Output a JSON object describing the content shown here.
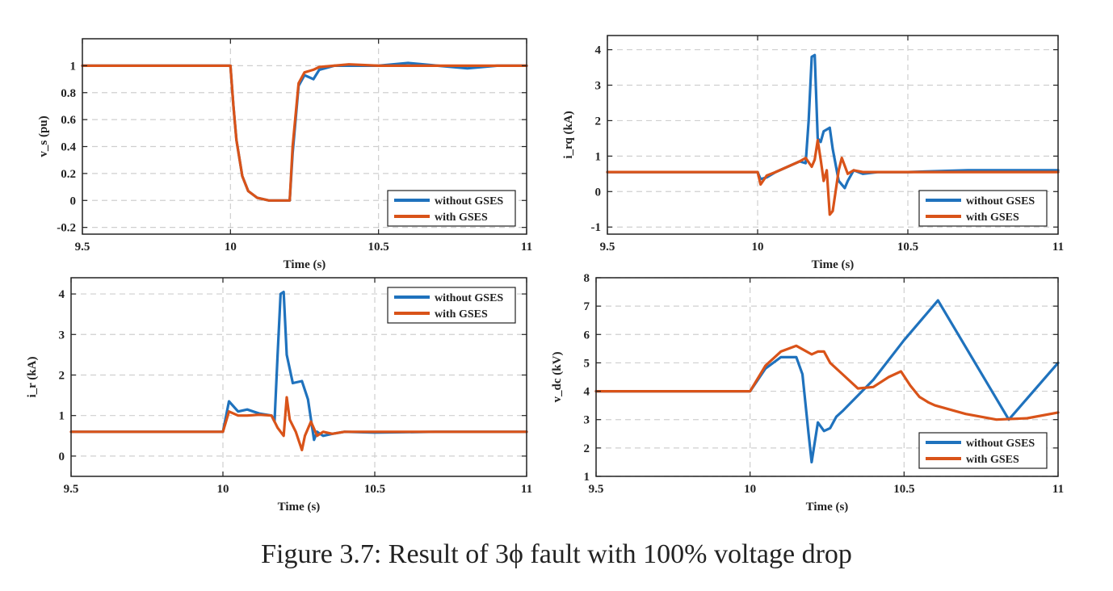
{
  "caption": "Figure 3.7: Result of 3ϕ fault with 100% voltage drop",
  "colors": {
    "without": "#1f72bd",
    "with": "#d95319"
  },
  "chart_data": [
    {
      "type": "line",
      "ylabel": "v_s (pu)",
      "xlabel": "Time (s)",
      "xlim": [
        9.5,
        11
      ],
      "ylim": [
        -0.25,
        1.2
      ],
      "xticks": [
        9.5,
        10,
        10.5,
        11
      ],
      "xtick_labels": [
        "9.5",
        "10",
        "10.5",
        "11"
      ],
      "yticks": [
        -0.2,
        0,
        0.2,
        0.4,
        0.6,
        0.8,
        1
      ],
      "ytick_labels": [
        "-0.2",
        "0",
        "0.2",
        "0.4",
        "0.6",
        "0.8",
        "1"
      ],
      "grid": true,
      "legend_position": "bottom-right",
      "series": [
        {
          "name": "without GSES",
          "color": "#1f72bd",
          "x": [
            9.5,
            10.0,
            10.01,
            10.02,
            10.04,
            10.06,
            10.09,
            10.13,
            10.2,
            10.21,
            10.23,
            10.25,
            10.28,
            10.3,
            10.35,
            10.4,
            10.5,
            10.6,
            10.7,
            10.8,
            10.9,
            11.0
          ],
          "y": [
            1,
            1,
            0.7,
            0.45,
            0.18,
            0.07,
            0.02,
            0.0,
            0.0,
            0.35,
            0.85,
            0.93,
            0.9,
            0.97,
            1.0,
            1.0,
            1.0,
            1.02,
            1.0,
            0.98,
            1.0,
            1.0
          ]
        },
        {
          "name": "with GSES",
          "color": "#d95319",
          "x": [
            9.5,
            10.0,
            10.01,
            10.02,
            10.04,
            10.06,
            10.09,
            10.13,
            10.2,
            10.21,
            10.23,
            10.25,
            10.28,
            10.3,
            10.35,
            10.4,
            10.5,
            10.6,
            10.7,
            10.8,
            10.9,
            11.0
          ],
          "y": [
            1,
            1,
            0.7,
            0.45,
            0.18,
            0.07,
            0.02,
            0.0,
            0.0,
            0.4,
            0.87,
            0.95,
            0.97,
            0.99,
            1.0,
            1.01,
            1.0,
            1.0,
            1.0,
            1.0,
            1.0,
            1.0
          ]
        }
      ]
    },
    {
      "type": "line",
      "ylabel": "i_rq (kA)",
      "xlabel": "Time (s)",
      "xlim": [
        9.5,
        11
      ],
      "ylim": [
        -1.2,
        4.4
      ],
      "xticks": [
        9.5,
        10,
        10.5,
        11
      ],
      "xtick_labels": [
        "9.5",
        "10",
        "10.5",
        "11"
      ],
      "yticks": [
        -1,
        0,
        1,
        2,
        3,
        4
      ],
      "ytick_labels": [
        "-1",
        "0",
        "1",
        "2",
        "3",
        "4"
      ],
      "grid": true,
      "legend_position": "bottom-right",
      "series": [
        {
          "name": "without GSES",
          "color": "#1f72bd",
          "x": [
            9.5,
            10.0,
            10.01,
            10.03,
            10.06,
            10.1,
            10.14,
            10.16,
            10.17,
            10.18,
            10.19,
            10.2,
            10.21,
            10.22,
            10.24,
            10.25,
            10.27,
            10.29,
            10.3,
            10.32,
            10.35,
            10.4,
            10.5,
            10.7,
            11.0
          ],
          "y": [
            0.55,
            0.55,
            0.35,
            0.4,
            0.55,
            0.7,
            0.85,
            0.8,
            2.0,
            3.8,
            3.85,
            1.5,
            1.4,
            1.7,
            1.8,
            1.2,
            0.3,
            0.1,
            0.3,
            0.6,
            0.5,
            0.55,
            0.55,
            0.6,
            0.6
          ]
        },
        {
          "name": "with GSES",
          "color": "#d95319",
          "x": [
            9.5,
            10.0,
            10.01,
            10.03,
            10.06,
            10.1,
            10.14,
            10.16,
            10.18,
            10.19,
            10.2,
            10.21,
            10.22,
            10.23,
            10.24,
            10.25,
            10.27,
            10.28,
            10.3,
            10.32,
            10.35,
            10.4,
            11.0
          ],
          "y": [
            0.55,
            0.55,
            0.2,
            0.45,
            0.55,
            0.7,
            0.85,
            0.95,
            0.7,
            0.9,
            1.45,
            0.9,
            0.3,
            0.6,
            -0.65,
            -0.55,
            0.6,
            0.95,
            0.5,
            0.6,
            0.55,
            0.55,
            0.55
          ]
        }
      ]
    },
    {
      "type": "line",
      "ylabel": "i_r (kA)",
      "xlabel": "Time (s)",
      "xlim": [
        9.5,
        11
      ],
      "ylim": [
        -0.5,
        4.4
      ],
      "xticks": [
        9.5,
        10,
        10.5,
        11
      ],
      "xtick_labels": [
        "9.5",
        "10",
        "10.5",
        "11"
      ],
      "yticks": [
        0,
        1,
        2,
        3,
        4
      ],
      "ytick_labels": [
        "0",
        "1",
        "2",
        "3",
        "4"
      ],
      "grid": true,
      "legend_position": "top-right",
      "series": [
        {
          "name": "without GSES",
          "color": "#1f72bd",
          "x": [
            9.5,
            10.0,
            10.02,
            10.05,
            10.08,
            10.12,
            10.16,
            10.17,
            10.18,
            10.19,
            10.2,
            10.21,
            10.23,
            10.26,
            10.28,
            10.3,
            10.31,
            10.33,
            10.36,
            10.4,
            10.5,
            10.7,
            11.0
          ],
          "y": [
            0.6,
            0.6,
            1.35,
            1.1,
            1.15,
            1.05,
            1.0,
            0.85,
            2.5,
            4.0,
            4.05,
            2.5,
            1.8,
            1.85,
            1.4,
            0.4,
            0.6,
            0.5,
            0.55,
            0.6,
            0.58,
            0.6,
            0.6
          ]
        },
        {
          "name": "with GSES",
          "color": "#d95319",
          "x": [
            9.5,
            10.0,
            10.02,
            10.05,
            10.08,
            10.12,
            10.16,
            10.18,
            10.2,
            10.21,
            10.22,
            10.24,
            10.26,
            10.27,
            10.29,
            10.31,
            10.33,
            10.36,
            10.4,
            11.0
          ],
          "y": [
            0.6,
            0.6,
            1.1,
            1.0,
            1.0,
            1.02,
            1.0,
            0.7,
            0.5,
            1.45,
            0.9,
            0.6,
            0.15,
            0.5,
            0.85,
            0.5,
            0.6,
            0.55,
            0.6,
            0.6
          ]
        }
      ]
    },
    {
      "type": "line",
      "ylabel": "v_dc (kV)",
      "xlabel": "Time (s)",
      "xlim": [
        9.5,
        11
      ],
      "ylim": [
        1,
        8
      ],
      "xticks": [
        9.5,
        10,
        10.5,
        11
      ],
      "xtick_labels": [
        "9.5",
        "10",
        "10.5",
        "11"
      ],
      "yticks": [
        1,
        2,
        3,
        4,
        5,
        6,
        7,
        8
      ],
      "ytick_labels": [
        "1",
        "2",
        "3",
        "4",
        "5",
        "6",
        "7",
        "8"
      ],
      "grid": true,
      "legend_position": "bottom-right",
      "series": [
        {
          "name": "without GSES",
          "color": "#1f72bd",
          "x": [
            9.5,
            10.0,
            10.05,
            10.1,
            10.15,
            10.17,
            10.19,
            10.2,
            10.22,
            10.24,
            10.26,
            10.28,
            10.3,
            10.4,
            10.5,
            10.61,
            10.84,
            11.0
          ],
          "y": [
            4,
            4,
            4.8,
            5.2,
            5.2,
            4.6,
            2.5,
            1.5,
            2.9,
            2.6,
            2.7,
            3.1,
            3.3,
            4.4,
            5.8,
            7.2,
            3.0,
            5.0
          ]
        },
        {
          "name": "with GSES",
          "color": "#d95319",
          "x": [
            9.5,
            10.0,
            10.05,
            10.1,
            10.15,
            10.2,
            10.22,
            10.24,
            10.26,
            10.3,
            10.35,
            10.4,
            10.45,
            10.49,
            10.52,
            10.55,
            10.58,
            10.6,
            10.7,
            10.8,
            10.9,
            11.0
          ],
          "y": [
            4,
            4,
            4.9,
            5.4,
            5.6,
            5.3,
            5.4,
            5.4,
            5.0,
            4.6,
            4.1,
            4.15,
            4.5,
            4.7,
            4.2,
            3.8,
            3.6,
            3.5,
            3.2,
            3.0,
            3.05,
            3.25
          ]
        }
      ]
    }
  ]
}
